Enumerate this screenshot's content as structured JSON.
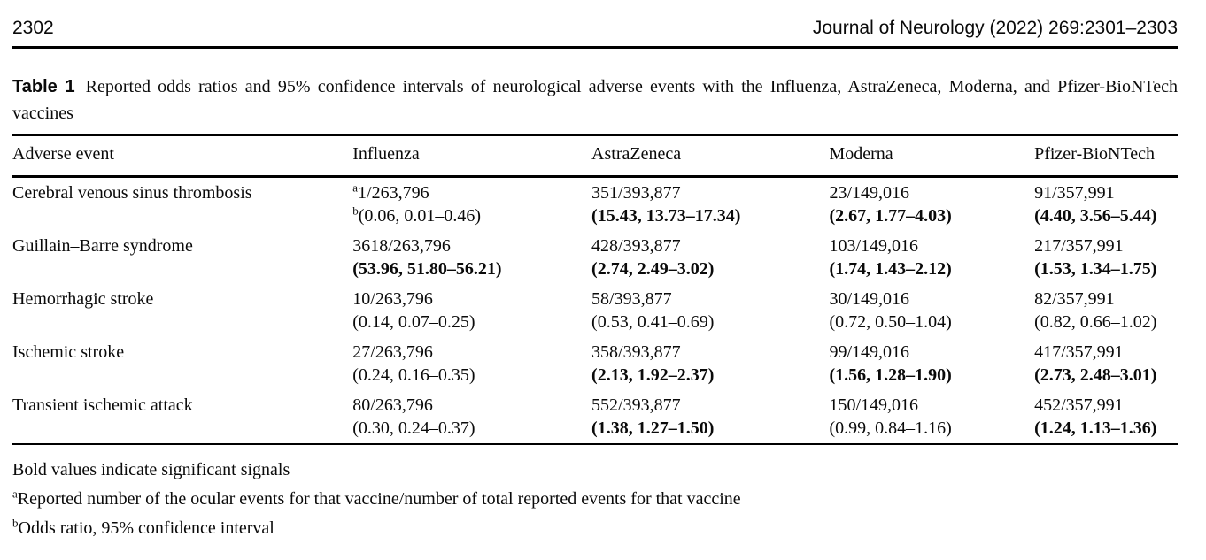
{
  "colors": {
    "text": "#0a0a0a",
    "background": "#ffffff",
    "rule": "#000000"
  },
  "page_header": {
    "page_number": "2302",
    "journal_citation": "Journal of Neurology (2022) 269:2301–2303"
  },
  "caption": {
    "label": "Table 1",
    "text": "Reported odds ratios and 95% confidence intervals of neurological adverse events with the Influenza, AstraZeneca, Moderna, and Pfizer-BioNTech vaccines"
  },
  "table": {
    "columns": [
      "Adverse event",
      "Influenza",
      "AstraZeneca",
      "Moderna",
      "Pfizer-BioNTech"
    ],
    "rows": [
      {
        "event": "Cerebral venous sinus thrombosis",
        "cells": [
          {
            "count_sup": "a",
            "count": "1/263,796",
            "or_sup": "b",
            "or": "(0.06, 0.01–0.46)",
            "bold": false
          },
          {
            "count": "351/393,877",
            "or": "(15.43, 13.73–17.34)",
            "bold": true
          },
          {
            "count": "23/149,016",
            "or": "(2.67, 1.77–4.03)",
            "bold": true
          },
          {
            "count": "91/357,991",
            "or": "(4.40, 3.56–5.44)",
            "bold": true
          }
        ]
      },
      {
        "event": "Guillain–Barre syndrome",
        "cells": [
          {
            "count": "3618/263,796",
            "or": "(53.96, 51.80–56.21)",
            "bold": true
          },
          {
            "count": "428/393,877",
            "or": "(2.74, 2.49–3.02)",
            "bold": true
          },
          {
            "count": "103/149,016",
            "or": "(1.74, 1.43–2.12)",
            "bold": true
          },
          {
            "count": "217/357,991",
            "or": "(1.53, 1.34–1.75)",
            "bold": true
          }
        ]
      },
      {
        "event": "Hemorrhagic stroke",
        "cells": [
          {
            "count": "10/263,796",
            "or": "(0.14, 0.07–0.25)",
            "bold": false
          },
          {
            "count": "58/393,877",
            "or": "(0.53, 0.41–0.69)",
            "bold": false
          },
          {
            "count": "30/149,016",
            "or": "(0.72, 0.50–1.04)",
            "bold": false
          },
          {
            "count": "82/357,991",
            "or": "(0.82, 0.66–1.02)",
            "bold": false
          }
        ]
      },
      {
        "event": "Ischemic stroke",
        "cells": [
          {
            "count": "27/263,796",
            "or": "(0.24, 0.16–0.35)",
            "bold": false
          },
          {
            "count": "358/393,877",
            "or": "(2.13, 1.92–2.37)",
            "bold": true
          },
          {
            "count": "99/149,016",
            "or": "(1.56, 1.28–1.90)",
            "bold": true
          },
          {
            "count": "417/357,991",
            "or": "(2.73, 2.48–3.01)",
            "bold": true
          }
        ]
      },
      {
        "event": "Transient ischemic attack",
        "cells": [
          {
            "count": "80/263,796",
            "or": "(0.30, 0.24–0.37)",
            "bold": false
          },
          {
            "count": "552/393,877",
            "or": "(1.38, 1.27–1.50)",
            "bold": true
          },
          {
            "count": "150/149,016",
            "or": "(0.99, 0.84–1.16)",
            "bold": false
          },
          {
            "count": "452/357,991",
            "or": "(1.24, 1.13–1.36)",
            "bold": true
          }
        ]
      }
    ]
  },
  "footnotes": [
    {
      "sup": "",
      "text": "Bold values indicate significant signals"
    },
    {
      "sup": "a",
      "text": "Reported number of the ocular events for that vaccine/number of total reported events for that vaccine"
    },
    {
      "sup": "b",
      "text": "Odds ratio, 95% confidence interval"
    }
  ]
}
